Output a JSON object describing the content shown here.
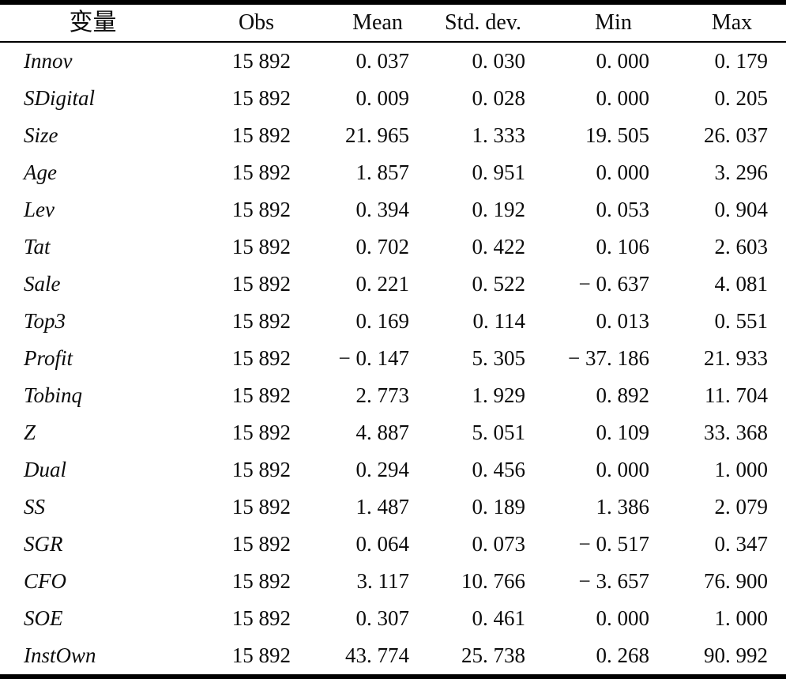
{
  "table": {
    "columns": [
      {
        "key": "var",
        "label": "变量"
      },
      {
        "key": "obs",
        "label": "Obs"
      },
      {
        "key": "mean",
        "label": "Mean"
      },
      {
        "key": "std",
        "label": "Std. dev."
      },
      {
        "key": "min",
        "label": "Min"
      },
      {
        "key": "max",
        "label": "Max"
      }
    ],
    "rows": [
      {
        "var": "Innov",
        "obs": "15 892",
        "mean": "0. 037",
        "std": "0. 030",
        "min": "0. 000",
        "max": "0. 179"
      },
      {
        "var": "SDigital",
        "obs": "15 892",
        "mean": "0. 009",
        "std": "0. 028",
        "min": "0. 000",
        "max": "0. 205"
      },
      {
        "var": "Size",
        "obs": "15 892",
        "mean": "21. 965",
        "std": "1. 333",
        "min": "19. 505",
        "max": "26. 037"
      },
      {
        "var": "Age",
        "obs": "15 892",
        "mean": "1. 857",
        "std": "0. 951",
        "min": "0. 000",
        "max": "3. 296"
      },
      {
        "var": "Lev",
        "obs": "15 892",
        "mean": "0. 394",
        "std": "0. 192",
        "min": "0. 053",
        "max": "0. 904"
      },
      {
        "var": "Tat",
        "obs": "15 892",
        "mean": "0. 702",
        "std": "0. 422",
        "min": "0. 106",
        "max": "2. 603"
      },
      {
        "var": "Sale",
        "obs": "15 892",
        "mean": "0. 221",
        "std": "0. 522",
        "min": "− 0. 637",
        "max": "4. 081"
      },
      {
        "var": "Top3",
        "obs": "15 892",
        "mean": "0. 169",
        "std": "0. 114",
        "min": "0. 013",
        "max": "0. 551"
      },
      {
        "var": "Profit",
        "obs": "15 892",
        "mean": "− 0. 147",
        "std": "5. 305",
        "min": "− 37. 186",
        "max": "21. 933"
      },
      {
        "var": "Tobinq",
        "obs": "15 892",
        "mean": "2. 773",
        "std": "1. 929",
        "min": "0. 892",
        "max": "11. 704"
      },
      {
        "var": "Z",
        "obs": "15 892",
        "mean": "4. 887",
        "std": "5. 051",
        "min": "0. 109",
        "max": "33. 368"
      },
      {
        "var": "Dual",
        "obs": "15 892",
        "mean": "0. 294",
        "std": "0. 456",
        "min": "0. 000",
        "max": "1. 000"
      },
      {
        "var": "SS",
        "obs": "15 892",
        "mean": "1. 487",
        "std": "0. 189",
        "min": "1. 386",
        "max": "2. 079"
      },
      {
        "var": "SGR",
        "obs": "15 892",
        "mean": "0. 064",
        "std": "0. 073",
        "min": "− 0. 517",
        "max": "0. 347"
      },
      {
        "var": "CFO",
        "obs": "15 892",
        "mean": "3. 117",
        "std": "10. 766",
        "min": "− 3. 657",
        "max": "76. 900"
      },
      {
        "var": "SOE",
        "obs": "15 892",
        "mean": "0. 307",
        "std": "0. 461",
        "min": "0. 000",
        "max": "1. 000"
      },
      {
        "var": "InstOwn",
        "obs": "15 892",
        "mean": "43. 774",
        "std": "25. 738",
        "min": "0. 268",
        "max": "90. 992"
      }
    ]
  }
}
